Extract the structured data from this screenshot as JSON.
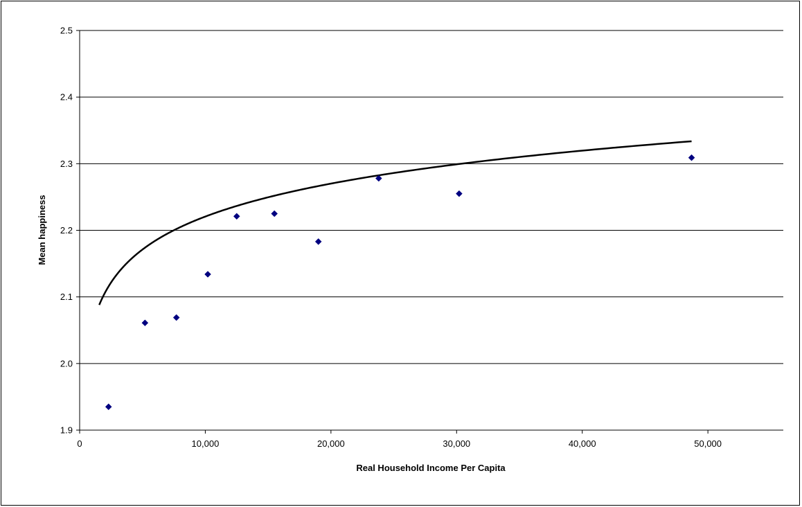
{
  "chart_data": {
    "type": "scatter",
    "title": "",
    "xlabel": "Real Household Income Per Capita",
    "ylabel": "Mean happiness",
    "xlim": [
      0,
      56000
    ],
    "ylim": [
      1.9,
      2.5
    ],
    "x_ticks": [
      0,
      10000,
      20000,
      30000,
      40000,
      50000
    ],
    "x_tick_labels": [
      "0",
      "10,000",
      "20,000",
      "30,000",
      "40,000",
      "50,000"
    ],
    "y_ticks": [
      1.9,
      2.0,
      2.1,
      2.2,
      2.3,
      2.4,
      2.5
    ],
    "y_tick_labels": [
      "1.9",
      "2.0",
      "2.1",
      "2.2",
      "2.3",
      "2.4",
      "2.5"
    ],
    "grid": "horizontal",
    "legend": "none",
    "marker": "diamond",
    "marker_color": "#000080",
    "series": [
      {
        "x": [
          2300,
          5200,
          7700,
          10200,
          12500,
          15500,
          19000,
          23800,
          30200,
          48700
        ],
        "y": [
          1.935,
          2.061,
          2.069,
          2.134,
          2.221,
          2.225,
          2.183,
          2.278,
          2.255,
          2.309
        ]
      }
    ],
    "trendline": {
      "type": "logarithmic",
      "a": 1.563,
      "b": 0.0714,
      "x_range": [
        1560,
        48700
      ],
      "color": "#000000"
    }
  }
}
